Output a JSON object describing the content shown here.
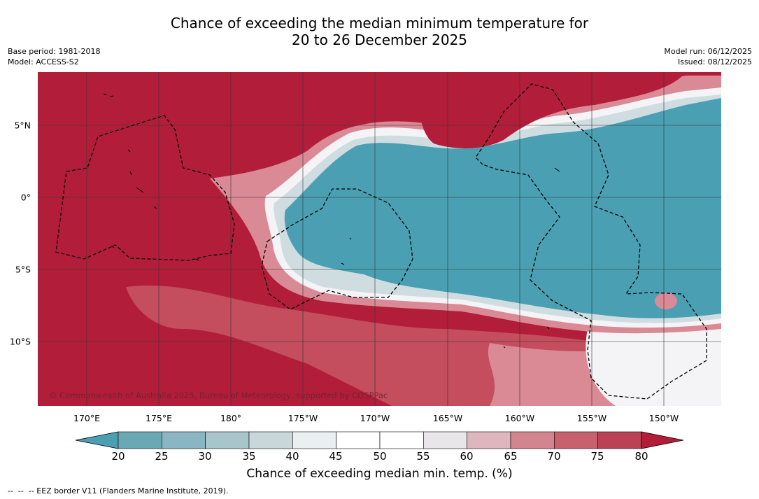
{
  "title": {
    "line1": "Chance of exceeding the median minimum temperature for",
    "line2": "20 to 26 December 2025"
  },
  "meta": {
    "base_period": "Base period: 1981-2018",
    "model": "Model: ACCESS-S2",
    "model_run": "Model run: 06/12/2025",
    "issued": "Issued: 08/12/2025"
  },
  "copyright": "© Commonwealth of Australia 2025, Bureau of Meteorology, supported by COSPPac",
  "axes": {
    "lon_ticks": [
      "170°E",
      "175°E",
      "180°",
      "175°W",
      "170°W",
      "165°W",
      "160°W",
      "155°W",
      "150°W"
    ],
    "lat_ticks": [
      "5°N",
      "0°",
      "5°S",
      "10°S"
    ]
  },
  "colorbar": {
    "ticks": [
      "20",
      "25",
      "30",
      "35",
      "40",
      "45",
      "50",
      "55",
      "60",
      "65",
      "70",
      "75",
      "80"
    ],
    "label": "Chance of exceeding median min. temp. (%)",
    "colors": [
      "#6aa9b4",
      "#89b6c2",
      "#a9c5cc",
      "#c9d7da",
      "#eaeff2",
      "#ffffff",
      "#ffffff",
      "#e8e6e8",
      "#e0b6bd",
      "#d3858f",
      "#c8616e",
      "#bb4154"
    ],
    "under_color": "#4aa0b2",
    "over_color": "#b21e3a"
  },
  "map_colors": {
    "high": "#b21e3a",
    "high2": "#c44d5e",
    "mid_high": "#d98a95",
    "light_pink": "#e8c2c7",
    "neutral": "#f4f4f6",
    "light_blue": "#cfdde1",
    "mid_blue": "#8fbcc6",
    "low": "#4aa0b2",
    "grid": "#333333",
    "eez": "#000000"
  },
  "legend_footnote": "--  --  -- EEZ border V11 (Flanders Marine Institute, 2019)."
}
